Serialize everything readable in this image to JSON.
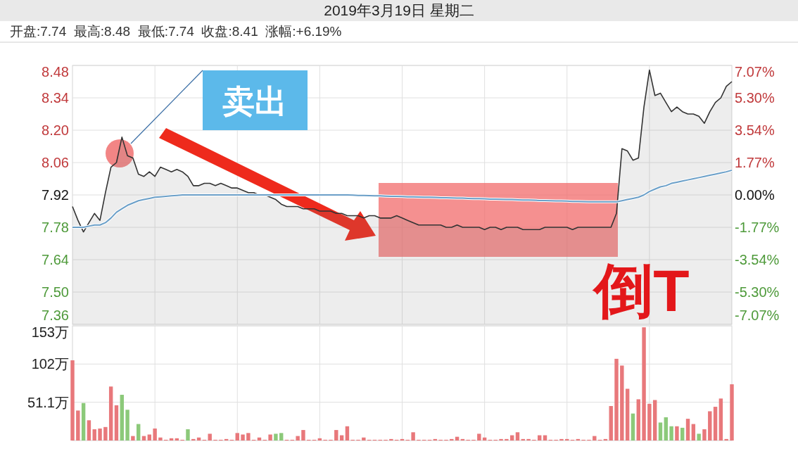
{
  "chart_data": [
    {
      "type": "line",
      "title": "2019年3月19日 星期二",
      "subtitle": "开盘:7.74  最高:8.48  最低:7.74  收盘:8.41  涨幅:+6.19%",
      "categories": [
        null,
        null,
        null,
        null,
        null,
        null,
        null,
        null,
        null,
        null,
        null,
        null,
        null,
        null,
        null,
        null,
        null,
        null,
        null,
        null,
        null,
        null,
        null,
        null,
        null,
        null,
        null,
        null,
        null,
        null,
        null,
        null,
        null,
        null,
        null,
        null,
        null,
        null,
        null,
        null,
        null,
        null,
        null,
        null,
        null,
        null,
        null,
        null,
        null,
        null,
        null,
        null,
        null,
        null,
        null,
        null,
        null,
        null,
        null,
        null,
        null,
        null,
        null,
        null,
        null,
        null,
        null,
        null,
        null,
        null,
        null,
        null,
        null,
        null,
        null,
        null,
        null,
        null,
        null,
        null,
        null,
        null,
        null,
        null,
        null,
        null,
        null,
        null,
        null,
        null,
        null,
        null,
        null,
        null,
        null,
        null,
        null,
        null,
        null,
        null,
        null,
        null,
        null,
        null,
        null,
        null,
        null,
        null,
        null,
        null,
        null,
        null,
        null,
        null,
        null,
        null,
        null,
        null,
        null,
        null,
        null
      ],
      "series": [
        {
          "type": "area",
          "color": "#333333",
          "values": [
            7.87,
            7.81,
            7.76,
            7.8,
            7.84,
            7.81,
            7.93,
            8.04,
            8.06,
            8.17,
            8.09,
            8.08,
            8.01,
            8.0,
            8.02,
            8.0,
            8.04,
            8.03,
            8.02,
            8.03,
            8.02,
            8.0,
            7.96,
            7.96,
            7.97,
            7.97,
            7.96,
            7.97,
            7.96,
            7.95,
            7.95,
            7.94,
            7.93,
            7.93,
            7.92,
            7.92,
            7.91,
            7.9,
            7.88,
            7.87,
            7.87,
            7.87,
            7.86,
            7.86,
            7.86,
            7.85,
            7.85,
            7.85,
            7.84,
            7.84,
            7.83,
            7.83,
            7.83,
            7.82,
            7.83,
            7.83,
            7.82,
            7.82,
            7.82,
            7.83,
            7.82,
            7.81,
            7.8,
            7.79,
            7.79,
            7.79,
            7.79,
            7.79,
            7.78,
            7.78,
            7.79,
            7.78,
            7.78,
            7.78,
            7.78,
            7.77,
            7.78,
            7.78,
            7.77,
            7.78,
            7.78,
            7.78,
            7.77,
            7.77,
            7.77,
            7.77,
            7.78,
            7.78,
            7.78,
            7.78,
            7.78,
            7.77,
            7.78,
            7.78,
            7.78,
            7.78,
            7.78,
            7.78,
            7.78,
            7.84,
            8.12,
            8.11,
            8.07,
            8.08,
            8.3,
            8.46,
            8.35,
            8.36,
            8.32,
            8.28,
            8.3,
            8.28,
            8.27,
            8.27,
            8.26,
            8.23,
            8.28,
            8.32,
            8.34,
            8.39,
            8.41
          ]
        },
        {
          "type": "line",
          "color": "#6a9fc8",
          "values": [
            7.78,
            7.78,
            7.78,
            7.785,
            7.79,
            7.79,
            7.8,
            7.82,
            7.845,
            7.86,
            7.875,
            7.885,
            7.895,
            7.9,
            7.905,
            7.91,
            7.912,
            7.914,
            7.916,
            7.918,
            7.92,
            7.92,
            7.92,
            7.92,
            7.92,
            7.92,
            7.92,
            7.92,
            7.92,
            7.92,
            7.92,
            7.92,
            7.92,
            7.92,
            7.92,
            7.92,
            7.92,
            7.92,
            7.92,
            7.92,
            7.92,
            7.92,
            7.92,
            7.92,
            7.92,
            7.92,
            7.92,
            7.92,
            7.92,
            7.92,
            7.92,
            7.919,
            7.918,
            7.918,
            7.917,
            7.916,
            7.916,
            7.915,
            7.914,
            7.914,
            7.913,
            7.912,
            7.912,
            7.911,
            7.91,
            7.91,
            7.909,
            7.908,
            7.908,
            7.907,
            7.906,
            7.906,
            7.905,
            7.904,
            7.904,
            7.903,
            7.902,
            7.902,
            7.901,
            7.9,
            7.9,
            7.899,
            7.898,
            7.898,
            7.897,
            7.896,
            7.896,
            7.895,
            7.894,
            7.894,
            7.893,
            7.892,
            7.892,
            7.891,
            7.89,
            7.89,
            7.89,
            7.89,
            7.89,
            7.89,
            7.895,
            7.9,
            7.905,
            7.91,
            7.92,
            7.935,
            7.945,
            7.955,
            7.96,
            7.97,
            7.975,
            7.98,
            7.985,
            7.99,
            7.995,
            8.0,
            8.005,
            8.01,
            8.015,
            8.02,
            8.027
          ]
        }
      ],
      "ylim": [
        7.36,
        8.48
      ],
      "yticks": [
        7.36,
        {
          "value": 7.5,
          "label": "7.50"
        },
        7.64,
        7.78,
        7.92,
        8.06,
        {
          "value": 8.2,
          "label": "8.20"
        },
        8.34,
        8.48
      ],
      "y2lim": [
        -7.07,
        7.07
      ],
      "y2ticks": [
        {
          "value": -7.07,
          "label": "-7.07%"
        },
        {
          "value": -5.3,
          "label": "-5.30%"
        },
        {
          "value": -3.54,
          "label": "-3.54%"
        },
        {
          "value": -1.77,
          "label": "-1.77%"
        },
        {
          "value": 0,
          "label": "0.00%"
        },
        {
          "value": 1.77,
          "label": "1.77%"
        },
        {
          "value": 3.54,
          "label": "3.54%"
        },
        {
          "value": 5.3,
          "label": "5.30%"
        },
        {
          "value": 7.07,
          "label": "7.07%"
        }
      ],
      "tick_labels": "y",
      "grid": true,
      "annotations": [
        "卖出",
        "倒T"
      ]
    },
    {
      "type": "bar",
      "categories": [
        null,
        null,
        null,
        null,
        null,
        null,
        null,
        null,
        null,
        null,
        null,
        null,
        null,
        null,
        null,
        null,
        null,
        null,
        null,
        null,
        null,
        null,
        null,
        null,
        null,
        null,
        null,
        null,
        null,
        null,
        null,
        null,
        null,
        null,
        null,
        null,
        null,
        null,
        null,
        null,
        null,
        null,
        null,
        null,
        null,
        null,
        null,
        null,
        null,
        null,
        null,
        null,
        null,
        null,
        null,
        null,
        null,
        null,
        null,
        null,
        null,
        null,
        null,
        null,
        null,
        null,
        null,
        null,
        null,
        null,
        null,
        null,
        null,
        null,
        null,
        null,
        null,
        null,
        null,
        null,
        null,
        null,
        null,
        null,
        null,
        null,
        null,
        null,
        null,
        null,
        null,
        null,
        null,
        null,
        null,
        null,
        null,
        null,
        null,
        null,
        null,
        null,
        null,
        null,
        null,
        null,
        null,
        null,
        null,
        null,
        null,
        null,
        null,
        null,
        null,
        null,
        null,
        null,
        null,
        null,
        null
      ],
      "values": [
        107,
        40,
        50,
        27,
        15,
        16,
        18,
        72,
        47,
        61,
        41,
        6,
        22,
        6,
        8,
        16,
        4,
        1,
        3,
        3,
        1,
        15,
        2,
        4,
        1,
        9,
        1,
        1,
        2,
        1,
        10,
        8,
        10,
        1,
        4,
        1,
        8,
        9,
        10,
        1,
        1,
        6,
        14,
        1,
        1,
        3,
        1,
        1,
        14,
        7,
        19,
        1,
        1,
        4,
        1,
        1,
        1,
        1,
        2,
        1,
        2,
        1,
        11,
        1,
        1,
        1,
        2,
        1,
        1,
        2,
        5,
        2,
        1,
        1,
        9,
        4,
        1,
        1,
        2,
        2,
        7,
        11,
        2,
        2,
        1,
        7,
        7,
        1,
        1,
        2,
        2,
        1,
        2,
        1,
        1,
        6,
        1,
        2,
        46,
        109,
        100,
        69,
        36,
        55,
        151,
        49,
        54,
        24,
        31,
        19,
        19,
        17,
        29,
        22,
        9,
        15,
        39,
        45,
        56,
        2,
        75
      ],
      "colors": [
        "#e8787b",
        "#e8787b",
        "#8cc97a",
        "#e8787b",
        "#e8787b",
        "#e8787b",
        "#e8787b",
        "#e8787b",
        "#e8787b",
        "#8cc97a",
        "#8cc97a",
        "#e8787b",
        "#8cc97a",
        "#e8787b",
        "#e8787b",
        "#e8787b",
        "#e8787b",
        "#e8787b",
        "#e8787b",
        "#e8787b",
        "#e8787b",
        "#8cc97a",
        "#e8787b",
        "#e8787b",
        "#e8787b",
        "#e8787b",
        "#e8787b",
        "#e8787b",
        "#e8787b",
        "#e8787b",
        "#e8787b",
        "#e8787b",
        "#e8787b",
        "#e8787b",
        "#e8787b",
        "#e8787b",
        "#e8787b",
        "#8cc97a",
        "#8cc97a",
        "#e8787b",
        "#e8787b",
        "#e8787b",
        "#e8787b",
        "#e8787b",
        "#e8787b",
        "#e8787b",
        "#e8787b",
        "#e8787b",
        "#e8787b",
        "#e8787b",
        "#e8787b",
        "#e8787b",
        "#e8787b",
        "#e8787b",
        "#e8787b",
        "#e8787b",
        "#e8787b",
        "#e8787b",
        "#e8787b",
        "#e8787b",
        "#e8787b",
        "#e8787b",
        "#e8787b",
        "#e8787b",
        "#e8787b",
        "#e8787b",
        "#e8787b",
        "#e8787b",
        "#e8787b",
        "#e8787b",
        "#e8787b",
        "#e8787b",
        "#e8787b",
        "#e8787b",
        "#e8787b",
        "#e8787b",
        "#e8787b",
        "#e8787b",
        "#e8787b",
        "#e8787b",
        "#e8787b",
        "#e8787b",
        "#e8787b",
        "#e8787b",
        "#e8787b",
        "#e8787b",
        "#e8787b",
        "#e8787b",
        "#e8787b",
        "#e8787b",
        "#e8787b",
        "#e8787b",
        "#e8787b",
        "#e8787b",
        "#e8787b",
        "#e8787b",
        "#e8787b",
        "#e8787b",
        "#e8787b",
        "#e8787b",
        "#e8787b",
        "#e8787b",
        "#8cc97a",
        "#e8787b",
        "#e8787b",
        "#e8787b",
        "#e8787b",
        "#8cc97a",
        "#8cc97a",
        "#8cc97a",
        "#e8787b",
        "#8cc97a",
        "#e8787b",
        "#e8787b",
        "#8cc97a",
        "#e8787b",
        "#e8787b",
        "#e8787b",
        "#e8787b",
        "#e8787b",
        "#e8787b"
      ],
      "ylim": [
        0,
        153
      ],
      "yticks": [
        {
          "value": 51.1,
          "label": "51.1万"
        },
        {
          "value": 102,
          "label": "102万"
        },
        {
          "value": 153,
          "label": "153万"
        }
      ],
      "tick_labels": "y",
      "grid": true
    }
  ]
}
